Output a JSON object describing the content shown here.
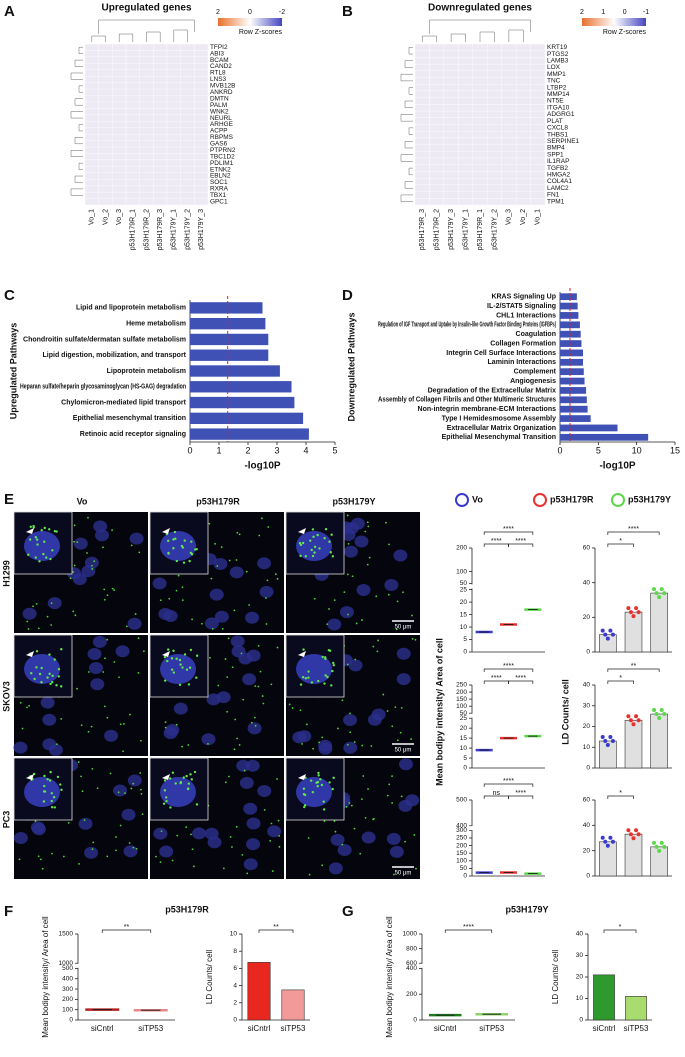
{
  "panels": [
    "A",
    "B",
    "C",
    "D",
    "E",
    "F",
    "G"
  ],
  "figure_e": {
    "columns": [
      "Vo",
      "p53H179R",
      "p53H179Y"
    ],
    "rows": [
      "H1299",
      "SKOV3",
      "PC3"
    ],
    "scale_bar": "50 μm",
    "legend": [
      {
        "name": "Vo",
        "color": "#3a3ad0"
      },
      {
        "name": "p53H179R",
        "color": "#e8322e"
      },
      {
        "name": "p53H179Y",
        "color": "#5cd84a"
      }
    ],
    "ylabel_intensity": "Mean bodipy intensity/ Area of cell",
    "ylabel_counts": "LD Counts/ cell"
  },
  "chart_data": [
    {
      "type": "heatmap",
      "title": "Upregulated genes",
      "legend_title": "Row Z-scores",
      "legend_ticks": [
        2,
        0,
        -2
      ],
      "colors": [
        "#e8702a",
        "#ffffff",
        "#4545c0"
      ],
      "rows": [
        "TFPI2",
        "ABI3",
        "BCAM",
        "CAND2",
        "RTL8",
        "LNS3",
        "MVB12B",
        "ANKRD",
        "DMTN",
        "PALM",
        "WNK2",
        "NEURL",
        "ARHGE",
        "ACPP",
        "RBPMS",
        "GAS6",
        "PTPRN2",
        "TBC1D2",
        "PDLIM1",
        "ETNK2",
        "EBLN2",
        "SOC1",
        "RXRA",
        "TBX1",
        "GPC1"
      ],
      "columns": [
        "Vo_1",
        "Vo_2",
        "Vo_3",
        "p53H179R_1",
        "p53H179R_2",
        "p53H179R_3",
        "p53H179Y_1",
        "p53H179Y_2",
        "p53H179Y_3"
      ]
    },
    {
      "type": "heatmap",
      "title": "Downregulated genes",
      "legend_title": "Row Z-scores",
      "legend_ticks": [
        2,
        1,
        0,
        -1
      ],
      "colors": [
        "#e8702a",
        "#ffffff",
        "#4545c0"
      ],
      "rows": [
        "KRT19",
        "PTGS2",
        "LAMB3",
        "LOX",
        "MMP1",
        "TNC",
        "LTBP2",
        "MMP14",
        "NT5E",
        "ITGA10",
        "ADGRG1",
        "PLAT",
        "CXCL8",
        "THBS1",
        "SERPINE1",
        "BMP4",
        "SPP1",
        "IL1RAP",
        "TGFB2",
        "HMGA2",
        "COL4A1",
        "LAMC2",
        "FN1",
        "TPM1"
      ],
      "columns": [
        "p53H179R_3",
        "p53H179R_2",
        "p53H179Y_3",
        "p53H179Y_1",
        "p53H179R_1",
        "p53H179Y_2",
        "Vo_3",
        "Vo_2",
        "Vo_1"
      ]
    },
    {
      "type": "barh",
      "ylabel": "Upregulated Pathways",
      "xlabel": "-log10P",
      "color": "#3f51b5",
      "threshold": 1.3,
      "xlim": [
        0,
        5
      ],
      "xticks": [
        0,
        1,
        2,
        3,
        4,
        5
      ],
      "categories": [
        "Lipid and lipoprotein metabolism",
        "Heme metabolism",
        "Chondroitin sulfate/dermatan sulfate metabolism",
        "Lipid digestion, mobilization, and transport",
        "Lipoprotein metabolism",
        "Heparan sulfate/heparin glycosaminoglycan (HS-GAG) degradation",
        "Chylomicron-mediated lipid transport",
        "Epithelial mesenchymal transition",
        "Retinoic acid receptor signaling"
      ],
      "values": [
        2.5,
        2.6,
        2.7,
        2.7,
        3.1,
        3.5,
        3.6,
        3.9,
        4.1
      ]
    },
    {
      "type": "barh",
      "ylabel": "Downregulated Pathways",
      "xlabel": "-log10P",
      "color": "#3f51b5",
      "threshold": 1.3,
      "xlim": [
        0,
        15
      ],
      "xticks": [
        0,
        5,
        10,
        15
      ],
      "categories": [
        "KRAS Signaling Up",
        "IL-2/STAT5 Signaling",
        "CHL1 Interactions",
        "Regulation of IGF Transport and Uptake by Insulin-like Growth Factor Binding Proteins (IGFBPs)",
        "Coagulation",
        "Collagen Formation",
        "Integrin Cell Surface Interactions",
        "Laminin Interactions",
        "Complement",
        "Angiogenesis",
        "Degradation of the Extracellular Matrix",
        "Assembly of Collagen Fibrils and Other Multimeric Structures",
        "Non-integrin membrane-ECM Interactions",
        "Type I Hemidesmosome Assembly",
        "Extracellular Matrix Organization",
        "Epithelial Mesenchymal Transition"
      ],
      "values": [
        2.2,
        2.3,
        2.4,
        2.6,
        2.7,
        2.8,
        3.0,
        3.0,
        3.1,
        3.2,
        3.4,
        3.5,
        3.6,
        4.0,
        7.5,
        11.5
      ]
    },
    {
      "type": "dot",
      "values": [
        8,
        11,
        17
      ],
      "ylim": [
        0,
        200
      ],
      "yticks": [
        0,
        5,
        10,
        15,
        20,
        25,
        50,
        100,
        200
      ],
      "ybreak": [
        25,
        50
      ],
      "annotations": [
        {
          "between": [
            0,
            1
          ],
          "label": "****"
        },
        {
          "between": [
            1,
            2
          ],
          "label": "****"
        },
        {
          "between": [
            0,
            2
          ],
          "label": "****"
        }
      ]
    },
    {
      "type": "bar",
      "values": [
        10,
        23,
        34
      ],
      "bar_fill": "#e0e0e0",
      "ylim": [
        0,
        60
      ],
      "yticks": [
        0,
        20,
        40,
        60
      ],
      "annotations": [
        {
          "between": [
            0,
            1
          ],
          "label": "*"
        },
        {
          "between": [
            0,
            2
          ],
          "label": "****"
        }
      ]
    },
    {
      "type": "dot",
      "values": [
        9,
        15,
        16
      ],
      "ylim": [
        0,
        250
      ],
      "yticks": [
        0,
        5,
        10,
        15,
        20,
        25,
        50,
        100,
        150,
        200,
        250
      ],
      "ybreak": [
        25,
        50
      ],
      "annotations": [
        {
          "between": [
            0,
            1
          ],
          "label": "****"
        },
        {
          "between": [
            1,
            2
          ],
          "label": "****"
        },
        {
          "between": [
            0,
            2
          ],
          "label": "****"
        }
      ]
    },
    {
      "type": "bar",
      "values": [
        13,
        23,
        26
      ],
      "bar_fill": "#e0e0e0",
      "ylim": [
        0,
        40
      ],
      "yticks": [
        0,
        10,
        20,
        30,
        40
      ],
      "annotations": [
        {
          "between": [
            0,
            1
          ],
          "label": "*"
        },
        {
          "between": [
            0,
            2
          ],
          "label": "**"
        }
      ]
    },
    {
      "type": "dot",
      "values": [
        22,
        23,
        16
      ],
      "ylim": [
        0,
        500
      ],
      "yticks": [
        0,
        50,
        100,
        150,
        200,
        250,
        300,
        400,
        500
      ],
      "ybreak": [
        300,
        400
      ],
      "annotations": [
        {
          "between": [
            0,
            1
          ],
          "label": "ns"
        },
        {
          "between": [
            1,
            2
          ],
          "label": "****"
        },
        {
          "between": [
            0,
            2
          ],
          "label": "****"
        }
      ]
    },
    {
      "type": "bar",
      "values": [
        27,
        33,
        23
      ],
      "bar_fill": "#e0e0e0",
      "ylim": [
        0,
        60
      ],
      "yticks": [
        0,
        20,
        40,
        60
      ],
      "annotations": [
        {
          "between": [
            0,
            1
          ],
          "label": "*"
        }
      ]
    },
    {
      "type": "dot",
      "title": "p53H179R",
      "ylabel": "Mean bodipy intensity/ Area of cell",
      "categories": [
        "siCntrl",
        "siTP53"
      ],
      "values": [
        100,
        95
      ],
      "colors": [
        "#b22222",
        "#e8888a"
      ],
      "ylim": [
        0,
        1500
      ],
      "yticks": [
        0,
        100,
        200,
        300,
        400,
        500,
        1000,
        1500
      ],
      "ybreak": [
        500,
        1000
      ],
      "annotations": [
        {
          "between": [
            0,
            1
          ],
          "label": "**"
        }
      ]
    },
    {
      "type": "bar",
      "ylabel": "LD Counts/ cell",
      "categories": [
        "siCntrl",
        "siTP53"
      ],
      "values": [
        6.7,
        3.5
      ],
      "colors": [
        "#e8281e",
        "#f29a9a"
      ],
      "ylim": [
        0,
        10
      ],
      "yticks": [
        0,
        2,
        4,
        6,
        8,
        10
      ],
      "annotations": [
        {
          "between": [
            0,
            1
          ],
          "label": "**"
        }
      ]
    },
    {
      "type": "dot",
      "title": "p53H179Y",
      "ylabel": "Mean bodipy intensity/ Area of cell",
      "categories": [
        "siCntrl",
        "siTP53"
      ],
      "values": [
        38,
        45
      ],
      "colors": [
        "#1f7a1f",
        "#8fd46a"
      ],
      "ylim": [
        0,
        1000
      ],
      "yticks": [
        0,
        200,
        400,
        600,
        800,
        1000
      ],
      "ybreak": [
        400,
        600
      ],
      "annotations": [
        {
          "between": [
            0,
            1
          ],
          "label": "****"
        }
      ]
    },
    {
      "type": "bar",
      "ylabel": "LD Counts/ cell",
      "categories": [
        "siCntrl",
        "siTP53"
      ],
      "values": [
        21,
        11
      ],
      "colors": [
        "#2e9a2e",
        "#a8dc6e"
      ],
      "ylim": [
        0,
        40
      ],
      "yticks": [
        0,
        10,
        20,
        30,
        40
      ],
      "annotations": [
        {
          "between": [
            0,
            1
          ],
          "label": "*"
        }
      ]
    }
  ]
}
